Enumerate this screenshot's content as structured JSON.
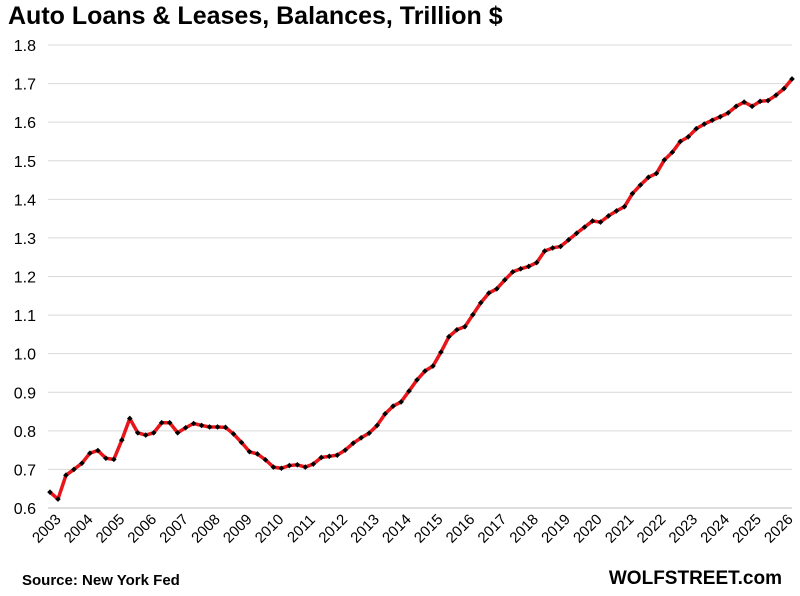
{
  "chart_data": {
    "type": "line",
    "title": "Auto Loans & Leases, Balances, Trillion $",
    "source": "Source: New York Fed",
    "brand": "WOLFSTREET.com",
    "ylim": [
      0.6,
      1.8
    ],
    "yticks": [
      "0.6",
      "0.7",
      "0.8",
      "0.9",
      "1.0",
      "1.1",
      "1.2",
      "1.3",
      "1.4",
      "1.5",
      "1.6",
      "1.7",
      "1.8"
    ],
    "xticks": [
      "2003",
      "2004",
      "2005",
      "2006",
      "2007",
      "2008",
      "2009",
      "2010",
      "2011",
      "2012",
      "2013",
      "2014",
      "2015",
      "2016",
      "2017",
      "2018",
      "2019",
      "2020",
      "2021",
      "2022",
      "2023",
      "2024",
      "2025",
      "2026"
    ],
    "grid": true,
    "line_color": "#e8161b",
    "marker_color": "#000000",
    "series": [
      {
        "values": [
          0.641,
          0.623,
          0.685,
          0.7,
          0.716,
          0.742,
          0.749,
          0.729,
          0.726,
          0.776,
          0.832,
          0.795,
          0.789,
          0.795,
          0.821,
          0.821,
          0.795,
          0.808,
          0.819,
          0.814,
          0.81,
          0.81,
          0.809,
          0.792,
          0.77,
          0.746,
          0.74,
          0.725,
          0.706,
          0.703,
          0.71,
          0.712,
          0.706,
          0.714,
          0.731,
          0.734,
          0.737,
          0.75,
          0.768,
          0.782,
          0.794,
          0.814,
          0.844,
          0.864,
          0.875,
          0.903,
          0.932,
          0.955,
          0.968,
          1.004,
          1.044,
          1.062,
          1.07,
          1.101,
          1.132,
          1.157,
          1.168,
          1.191,
          1.212,
          1.22,
          1.226,
          1.236,
          1.266,
          1.274,
          1.278,
          1.295,
          1.312,
          1.328,
          1.344,
          1.341,
          1.357,
          1.37,
          1.381,
          1.415,
          1.437,
          1.457,
          1.467,
          1.502,
          1.522,
          1.55,
          1.562,
          1.583,
          1.595,
          1.605,
          1.614,
          1.624,
          1.641,
          1.652,
          1.641,
          1.654,
          1.656,
          1.67,
          1.687,
          1.712
        ]
      }
    ]
  }
}
